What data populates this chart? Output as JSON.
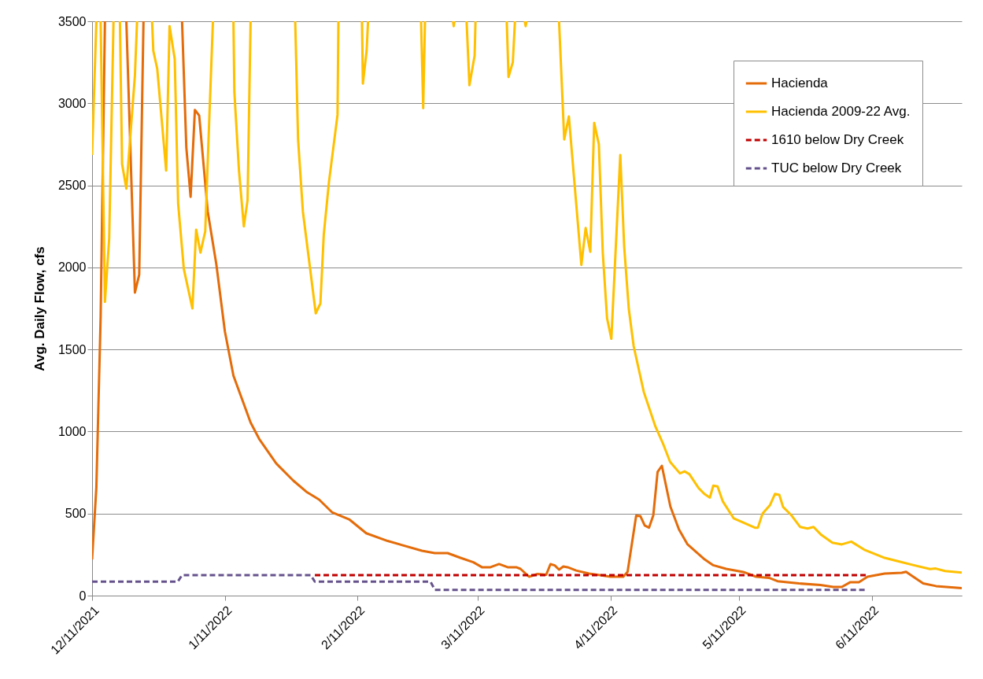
{
  "chart_data": {
    "type": "line",
    "ylabel": "Avg. Daily Flow, cfs",
    "ylim": [
      0,
      3500
    ],
    "yticks": [
      0,
      500,
      1000,
      1500,
      2000,
      2500,
      3000,
      3500
    ],
    "xlim": [
      "2021-12-11",
      "2022-07-02"
    ],
    "xticks": [
      {
        "value": "2021-12-11",
        "label": "12/11/2021"
      },
      {
        "value": "2022-01-11",
        "label": "1/11/2022"
      },
      {
        "value": "2022-02-11",
        "label": "2/11/2022"
      },
      {
        "value": "2022-03-11",
        "label": "3/11/2022"
      },
      {
        "value": "2022-04-11",
        "label": "4/11/2022"
      },
      {
        "value": "2022-05-11",
        "label": "5/11/2022"
      },
      {
        "value": "2022-06-11",
        "label": "6/11/2022"
      }
    ],
    "grid": "y",
    "legend": "top right",
    "series": [
      {
        "name": "Hacienda",
        "color": "#e46c0a",
        "line_style": "solid",
        "x": [
          "2021-12-11",
          "2021-12-12",
          "2021-12-13",
          "2021-12-14",
          "2021-12-16",
          "2021-12-19",
          "2021-12-21",
          "2021-12-22",
          "2021-12-23",
          "2021-12-27",
          "2022-01-01",
          "2022-01-02",
          "2022-01-03",
          "2022-01-04",
          "2022-01-05",
          "2022-01-07",
          "2022-01-09",
          "2022-01-11",
          "2022-01-13",
          "2022-01-17",
          "2022-01-19",
          "2022-01-23",
          "2022-01-27",
          "2022-01-30",
          "2022-02-02",
          "2022-02-05",
          "2022-02-09",
          "2022-02-13",
          "2022-02-18",
          "2022-02-26",
          "2022-03-01",
          "2022-03-04",
          "2022-03-07",
          "2022-03-10",
          "2022-03-12",
          "2022-03-14",
          "2022-03-16",
          "2022-03-18",
          "2022-03-20",
          "2022-03-21",
          "2022-03-23",
          "2022-03-25",
          "2022-03-27",
          "2022-03-28",
          "2022-03-29",
          "2022-03-30",
          "2022-03-31",
          "2022-04-01",
          "2022-04-03",
          "2022-04-06",
          "2022-04-11",
          "2022-04-14",
          "2022-04-15",
          "2022-04-17",
          "2022-04-18",
          "2022-04-19",
          "2022-04-20",
          "2022-04-21",
          "2022-04-22",
          "2022-04-23",
          "2022-04-25",
          "2022-04-27",
          "2022-04-29",
          "2022-05-03",
          "2022-05-05",
          "2022-05-08",
          "2022-05-12",
          "2022-05-15",
          "2022-05-18",
          "2022-05-20",
          "2022-05-25",
          "2022-05-30",
          "2022-06-02",
          "2022-06-04",
          "2022-06-06",
          "2022-06-08",
          "2022-06-10",
          "2022-06-14",
          "2022-06-18",
          "2022-06-19",
          "2022-06-20",
          "2022-06-23",
          "2022-06-26",
          "2022-07-02"
        ],
        "values": [
          220,
          660,
          1700,
          3500,
          null,
          3500,
          1846,
          1956,
          3500,
          null,
          3500,
          2730,
          2430,
          2960,
          2925,
          2340,
          2020,
          1610,
          1340,
          1055,
          955,
          805,
          700,
          633,
          585,
          508,
          465,
          380,
          333,
          273,
          259,
          259,
          230,
          203,
          173,
          173,
          192,
          173,
          173,
          163,
          115,
          132,
          127,
          192,
          184,
          158,
          177,
          173,
          153,
          134,
          115,
          115,
          145,
          487,
          484,
          427,
          414,
          489,
          753,
          791,
          542,
          403,
          312,
          220,
          185,
          163,
          144,
          115,
          108,
          88,
          74,
          65,
          53,
          53,
          82,
          82,
          115,
          134,
          139,
          145,
          127,
          74,
          58,
          45
        ]
      },
      {
        "name": "Hacienda 2009-22 Avg.",
        "color": "#ffc000",
        "line_style": "solid",
        "x": [
          "2021-12-11",
          "2021-12-12",
          "2021-12-12T12:00",
          "2021-12-13",
          "2021-12-14",
          "2021-12-15",
          "2021-12-16",
          "2021-12-16T18:00",
          "2021-12-17T12:00",
          "2021-12-18",
          "2021-12-19",
          "2021-12-21",
          "2021-12-21T12:00",
          "2021-12-23",
          "2021-12-25",
          "2021-12-25T07:00",
          "2021-12-26T05:00",
          "2021-12-28T07:00",
          "2021-12-29T02:00",
          "2021-12-30T07:00",
          "2021-12-31T02:00",
          "2022-01-01T10:00",
          "2022-01-03T10:00",
          "2022-01-04T07:00",
          "2022-01-05T07:00",
          "2022-01-06T10:00",
          "2022-01-07T05:00",
          "2022-01-08T05:00",
          "2022-01-12",
          "2022-01-13",
          "2022-01-13T05:00",
          "2022-01-14T07:00",
          "2022-01-15T10:00",
          "2022-01-16T07:00",
          "2022-01-17",
          "2022-01-22",
          "2022-01-27T10:00",
          "2022-01-28T02:00",
          "2022-01-29T05:00",
          "2022-02-01T05:00",
          "2022-02-02T07:00",
          "2022-02-03T02:00",
          "2022-02-04T07:00",
          "2022-02-06T07:00",
          "2022-02-06T12:00",
          "2022-02-09",
          "2022-02-12",
          "2022-02-12T05:00",
          "2022-02-13T02:00",
          "2022-02-13T10:00",
          "2022-02-20",
          "2022-02-25T19:00",
          "2022-02-26T07:00",
          "2022-02-26T17:00",
          "2022-03-01",
          "2022-03-05T06:00",
          "2022-03-05T10:00",
          "2022-03-05T14:00",
          "2022-03-07",
          "2022-03-08T10:00",
          "2022-03-09T02:00",
          "2022-03-10T07:00",
          "2022-03-10T12:00",
          "2022-03-14",
          "2022-03-17T19:00",
          "2022-03-18T05:00",
          "2022-03-19T05:00",
          "2022-03-19T17:00",
          "2022-03-20T12:00",
          "2022-03-22",
          "2022-03-22T05:00",
          "2022-03-22T10:00",
          "2022-03-25",
          "2022-03-30",
          "2022-03-31T05:00",
          "2022-04-01T07:00",
          "2022-04-04T05:00",
          "2022-04-05T05:00",
          "2022-04-06T07:00",
          "2022-04-07T05:00",
          "2022-04-08T07:00",
          "2022-04-09T05:00",
          "2022-04-10T05:00",
          "2022-04-11T05:00",
          "2022-04-13T07:00",
          "2022-04-14T05:00",
          "2022-04-15T07:00",
          "2022-04-16T10:00",
          "2022-04-18T19:00",
          "2022-04-21T12:00",
          "2022-04-23T05:00",
          "2022-04-24T22:00",
          "2022-04-27T05:00",
          "2022-04-28T07:00",
          "2022-04-29T10:00",
          "2022-05-01T14:00",
          "2022-05-02T22:00",
          "2022-05-04T05:00",
          "2022-05-05",
          "2022-05-06",
          "2022-05-07T05:00",
          "2022-05-09T19:00",
          "2022-05-14T17:00",
          "2022-05-15T10:00",
          "2022-05-16T12:00",
          "2022-05-18T05:00",
          "2022-05-19T10:00",
          "2022-05-20T10:00",
          "2022-05-21T07:00",
          "2022-05-23T02:00",
          "2022-05-25T07:00",
          "2022-05-27",
          "2022-05-28T10:00",
          "2022-05-30T05:00",
          "2022-06-01T19:00",
          "2022-06-04",
          "2022-06-06T05:00",
          "2022-06-09T05:00",
          "2022-06-14",
          "2022-06-16T17:00",
          "2022-06-21",
          "2022-06-24T14:00",
          "2022-06-25T22:00",
          "2022-06-28T02:00",
          "2022-07-02"
        ],
        "values": [
          2685,
          3500,
          null,
          3500,
          1790,
          2180,
          3500,
          null,
          3500,
          2630,
          2480,
          3170,
          3500,
          null,
          3500,
          3320,
          3210,
          2590,
          3470,
          3270,
          2390,
          1990,
          1750,
          2230,
          2090,
          2220,
          2800,
          3500,
          null,
          3500,
          3070,
          2590,
          2250,
          2410,
          3500,
          null,
          3500,
          2780,
          2340,
          1720,
          1780,
          2200,
          2520,
          2930,
          3500,
          null,
          3500,
          3120,
          3320,
          3500,
          null,
          3500,
          2970,
          3500,
          null,
          3500,
          3470,
          3500,
          null,
          3500,
          3110,
          3290,
          3500,
          null,
          3500,
          3160,
          3250,
          3500,
          null,
          3500,
          3470,
          3500,
          null,
          3500,
          2780,
          2920,
          2015,
          2240,
          2095,
          2880,
          2750,
          2090,
          1690,
          1565,
          2685,
          2125,
          1745,
          1520,
          1240,
          1030,
          930,
          815,
          745,
          757,
          740,
          655,
          620,
          597,
          670,
          665,
          575,
          470,
          414,
          414,
          500,
          550,
          620,
          614,
          540,
          494,
          418,
          409,
          418,
          370,
          322,
          312,
          329,
          280,
          230,
          212,
          184,
          162,
          165,
          150,
          140
        ]
      },
      {
        "name": "1610 below Dry Creek",
        "color": "#c00000",
        "line_style": "dashed",
        "x": [
          "2022-02-01",
          "2022-06-10"
        ],
        "values": [
          125,
          125
        ]
      },
      {
        "name": "TUC below Dry Creek",
        "color": "#65528c",
        "line_style": "dashed",
        "x": [
          "2021-12-11",
          "2021-12-31",
          "2022-01-01",
          "2022-01-31",
          "2022-02-01",
          "2022-02-28",
          "2022-03-01",
          "2022-06-10"
        ],
        "values": [
          85,
          85,
          125,
          125,
          85,
          85,
          35,
          35
        ]
      }
    ]
  }
}
